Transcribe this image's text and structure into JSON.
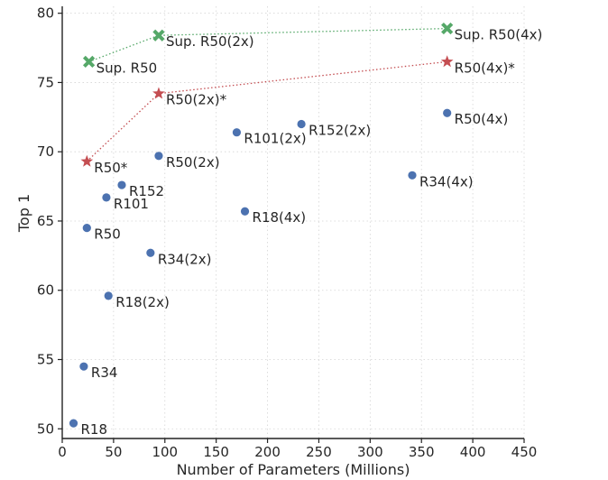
{
  "chart_data": {
    "type": "scatter",
    "title": "",
    "xlabel": "Number of Parameters (Millions)",
    "ylabel": "Top 1",
    "xlim": [
      0,
      450
    ],
    "ylim": [
      49.3,
      80.5
    ],
    "xticks": [
      0,
      50,
      100,
      150,
      200,
      250,
      300,
      350,
      400,
      450
    ],
    "yticks": [
      50,
      55,
      60,
      65,
      70,
      75,
      80
    ],
    "grid": true,
    "colors": {
      "dots": "#4c72b0",
      "stars": "#c44e52",
      "crosses": "#55a868",
      "axis": "#222222"
    },
    "series": [
      {
        "marker": "circle",
        "color": "#4c72b0",
        "line": false,
        "points": [
          {
            "label": "R18",
            "x": 11,
            "y": 50.4
          },
          {
            "label": "R34",
            "x": 21,
            "y": 54.5
          },
          {
            "label": "R18(2x)",
            "x": 45,
            "y": 59.6
          },
          {
            "label": "R50",
            "x": 24,
            "y": 64.5
          },
          {
            "label": "R101",
            "x": 43,
            "y": 66.7
          },
          {
            "label": "R152",
            "x": 58,
            "y": 67.6
          },
          {
            "label": "R34(2x)",
            "x": 86,
            "y": 62.7
          },
          {
            "label": "R50(2x)",
            "x": 94,
            "y": 69.7
          },
          {
            "label": "R18(4x)",
            "x": 178,
            "y": 65.7
          },
          {
            "label": "R101(2x)",
            "x": 170,
            "y": 71.4
          },
          {
            "label": "R152(2x)",
            "x": 233,
            "y": 72.0
          },
          {
            "label": "R34(4x)",
            "x": 341,
            "y": 68.3
          },
          {
            "label": "R50(4x)",
            "x": 375,
            "y": 72.8
          }
        ]
      },
      {
        "marker": "star",
        "color": "#c44e52",
        "line": true,
        "points": [
          {
            "label": "R50*",
            "x": 24,
            "y": 69.3
          },
          {
            "label": "R50(2x)*",
            "x": 94,
            "y": 74.2
          },
          {
            "label": "R50(4x)*",
            "x": 375,
            "y": 76.5
          }
        ]
      },
      {
        "marker": "cross",
        "color": "#55a868",
        "line": true,
        "points": [
          {
            "label": "Sup. R50",
            "x": 26,
            "y": 76.5
          },
          {
            "label": "Sup. R50(2x)",
            "x": 94,
            "y": 78.4
          },
          {
            "label": "Sup. R50(4x)",
            "x": 375,
            "y": 78.9
          }
        ]
      }
    ]
  }
}
